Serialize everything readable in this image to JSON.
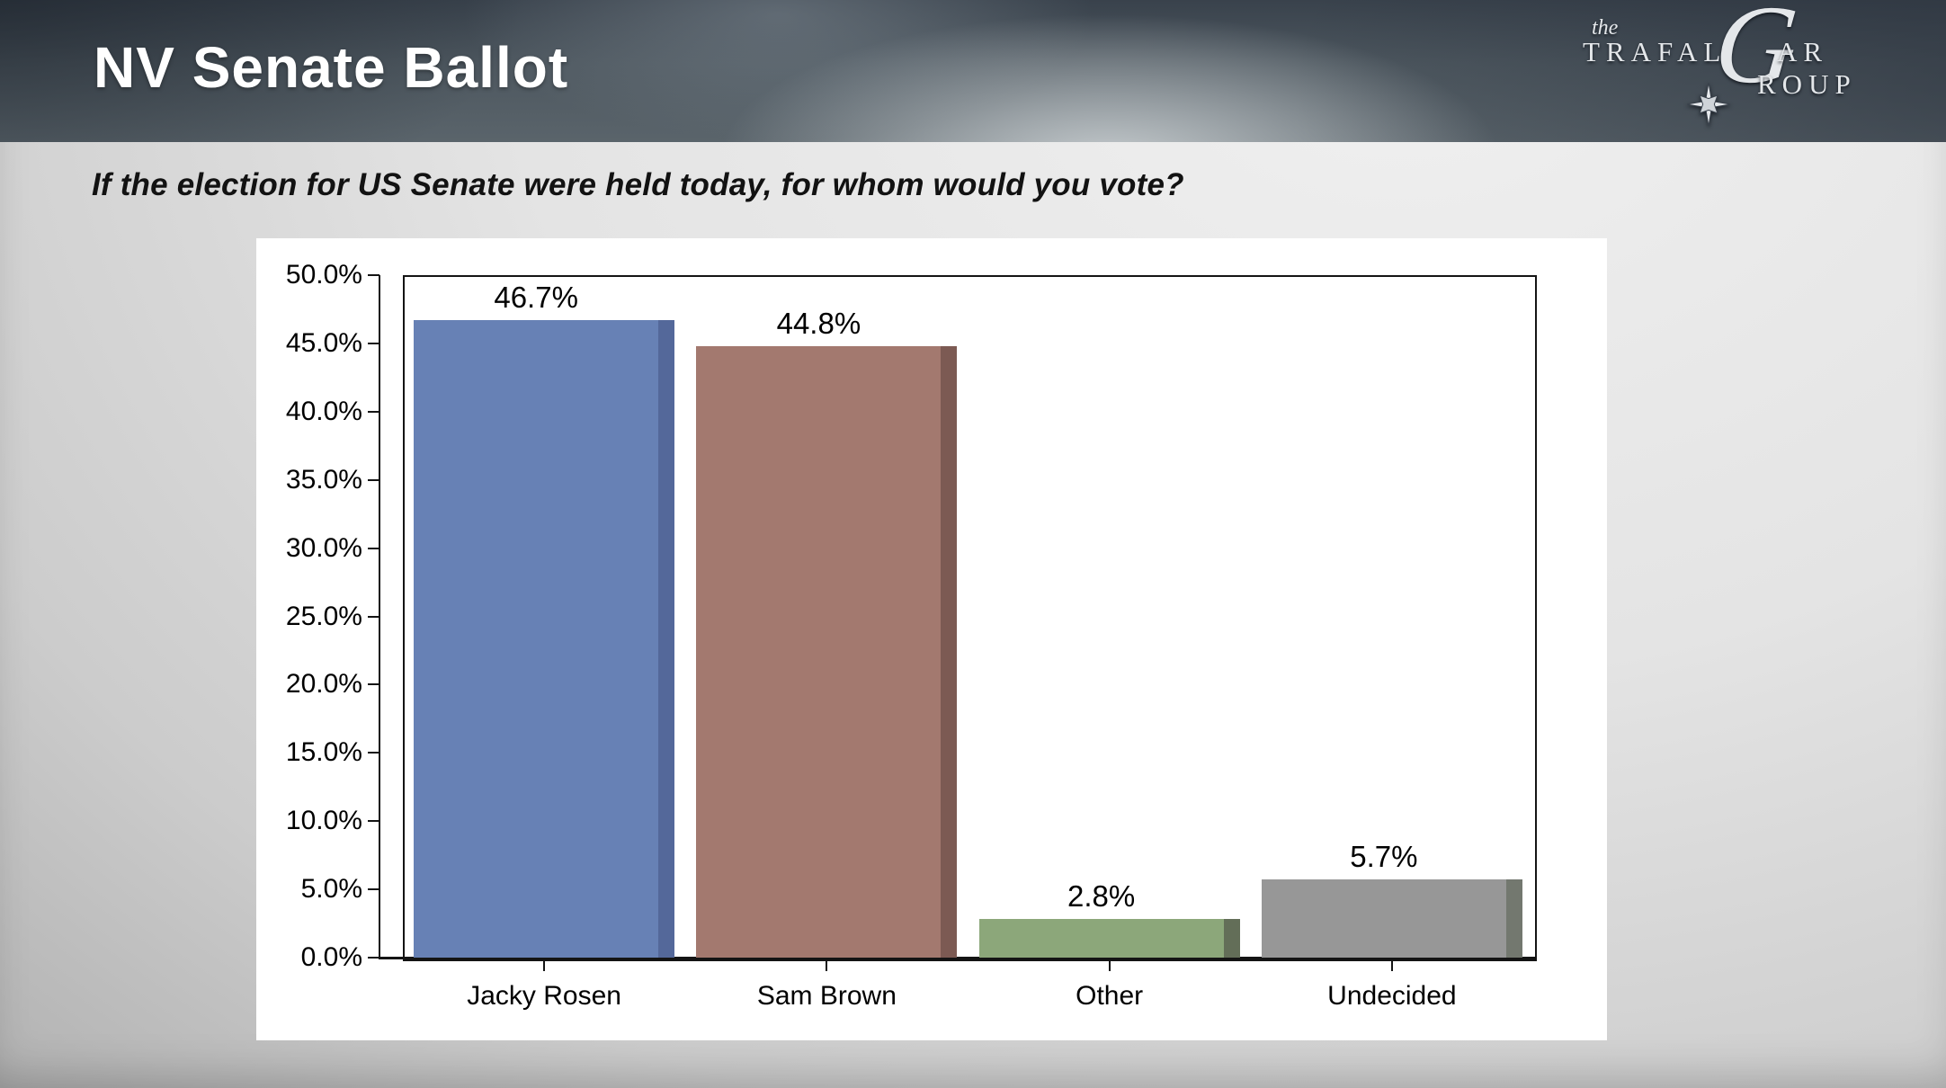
{
  "header": {
    "title": "NV Senate Ballot",
    "logo": {
      "the": "the",
      "part1": "TRAFAL",
      "g": "G",
      "part2": "AR",
      "part3": "ROUP"
    }
  },
  "question": "If the election for US Senate were held today, for whom would you vote?",
  "chart_data": {
    "type": "bar",
    "title": "",
    "xlabel": "",
    "ylabel": "",
    "categories": [
      "Jacky Rosen",
      "Sam Brown",
      "Other",
      "Undecided"
    ],
    "values": [
      46.7,
      44.8,
      2.8,
      5.7
    ],
    "value_labels": [
      "46.7%",
      "44.8%",
      "2.8%",
      "5.7%"
    ],
    "bar_colors": [
      "#6781b5",
      "#a3796f",
      "#8ca77a",
      "#979797"
    ],
    "bar_edge_colors": [
      "#54689a",
      "#7c5a53",
      "#636e58",
      "#73786f"
    ],
    "ylim": [
      0,
      50
    ],
    "ytick_labels": [
      "0.0%",
      "5.0%",
      "10.0%",
      "15.0%",
      "20.0%",
      "25.0%",
      "30.0%",
      "35.0%",
      "40.0%",
      "45.0%",
      "50.0%"
    ],
    "grid": false,
    "legend": "none",
    "plot_background": "#ffffff"
  }
}
